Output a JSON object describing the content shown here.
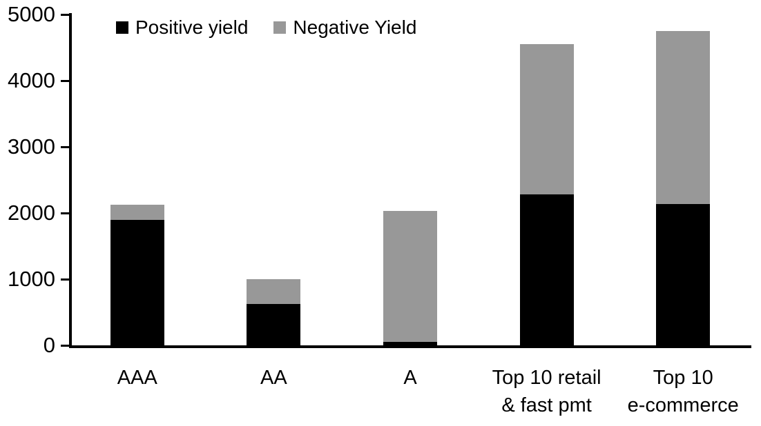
{
  "chart_data": {
    "type": "bar",
    "stacked": true,
    "title": "",
    "xlabel": "",
    "ylabel": "",
    "categories": [
      "AAA",
      "AA",
      "A",
      "Top 10 retail\n& fast pmt",
      "Top 10\ne-commerce"
    ],
    "series": [
      {
        "name": "Positive yield",
        "color": "#000000",
        "values": [
          1900,
          620,
          50,
          2280,
          2140
        ]
      },
      {
        "name": "Negative Yield",
        "color": "#989898",
        "values": [
          220,
          380,
          1980,
          2270,
          2610
        ]
      }
    ],
    "totals": [
      2120,
      1000,
      2030,
      4550,
      4750
    ],
    "ylim": [
      0,
      5000
    ],
    "yticks": [
      0,
      1000,
      2000,
      3000,
      4000,
      5000
    ],
    "grid": false,
    "legend_position": "top",
    "axis_color": "#000000",
    "background_color": "#ffffff"
  }
}
